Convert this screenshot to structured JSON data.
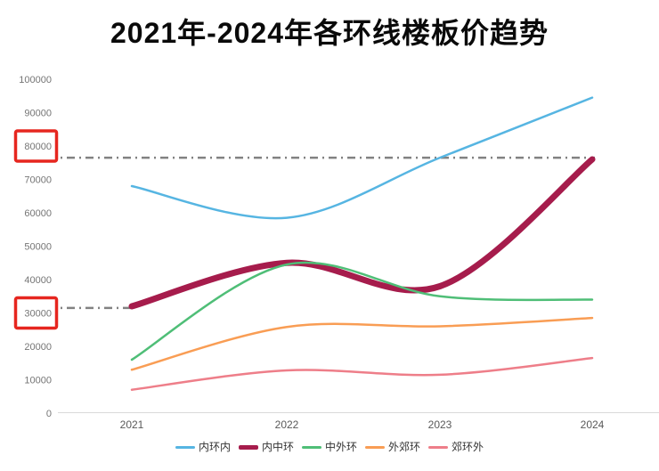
{
  "chart_data": {
    "type": "line",
    "title": "2021年-2024年各环线楼板价趋势",
    "x": [
      "2021",
      "2022",
      "2023",
      "2024"
    ],
    "series": [
      {
        "name": "内环内",
        "color": "#56b5e2",
        "line_width": 2.5,
        "values": [
          68000,
          58500,
          76500,
          94500
        ]
      },
      {
        "name": "内中环",
        "color": "#a61c4c",
        "line_width": 7,
        "values": [
          32000,
          45000,
          38000,
          76000
        ]
      },
      {
        "name": "中外环",
        "color": "#4fbe77",
        "line_width": 2.5,
        "values": [
          16000,
          44500,
          35000,
          34000
        ]
      },
      {
        "name": "外郊环",
        "color": "#f99d54",
        "line_width": 2.5,
        "values": [
          13000,
          25800,
          26000,
          28500
        ]
      },
      {
        "name": "郊环外",
        "color": "#ee7e89",
        "line_width": 2.5,
        "values": [
          7000,
          12800,
          11500,
          16500
        ]
      }
    ],
    "ylabel": "",
    "xlabel": "",
    "ylim": [
      0,
      100000
    ],
    "ytick_step": 10000,
    "ytick_labels": [
      "0",
      "10000",
      "20000",
      "30000",
      "40000",
      "50000",
      "60000",
      "70000",
      "80000",
      "90000",
      "100000"
    ],
    "highlighted_yticks": [
      80000,
      30000
    ],
    "reference_lines": [
      {
        "value": 76500,
        "style": "dash-dot",
        "extent": "full"
      },
      {
        "value": 31500,
        "style": "dash-dot",
        "extent": "left-stub"
      }
    ],
    "grid": false,
    "smooth": true,
    "legend_position": "bottom"
  },
  "colors": {
    "highlight_box": "#e6261f",
    "reference_line": "#828282",
    "axis_line": "#d9d9d9",
    "ytick_label": "#757575",
    "xtick_label": "#595959",
    "legend_label": "#333333"
  }
}
